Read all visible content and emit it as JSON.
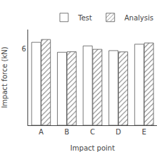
{
  "chart_data": {
    "type": "bar",
    "categories": [
      "A",
      "B",
      "C",
      "D",
      "E"
    ],
    "series": [
      {
        "name": "Test",
        "color": "#ffffff",
        "values": [
          6.5,
          5.72,
          6.22,
          5.85,
          6.35
        ]
      },
      {
        "name": "Analysis",
        "color": "#d0d0d0",
        "values": [
          6.72,
          5.76,
          5.95,
          5.75,
          6.45
        ]
      }
    ],
    "xlabel": "Impact point",
    "ylabel": "Impact force (kN)",
    "ylim": [
      0,
      7.5
    ],
    "yticks": [
      6
    ],
    "grid": false,
    "legend": "upper right"
  }
}
